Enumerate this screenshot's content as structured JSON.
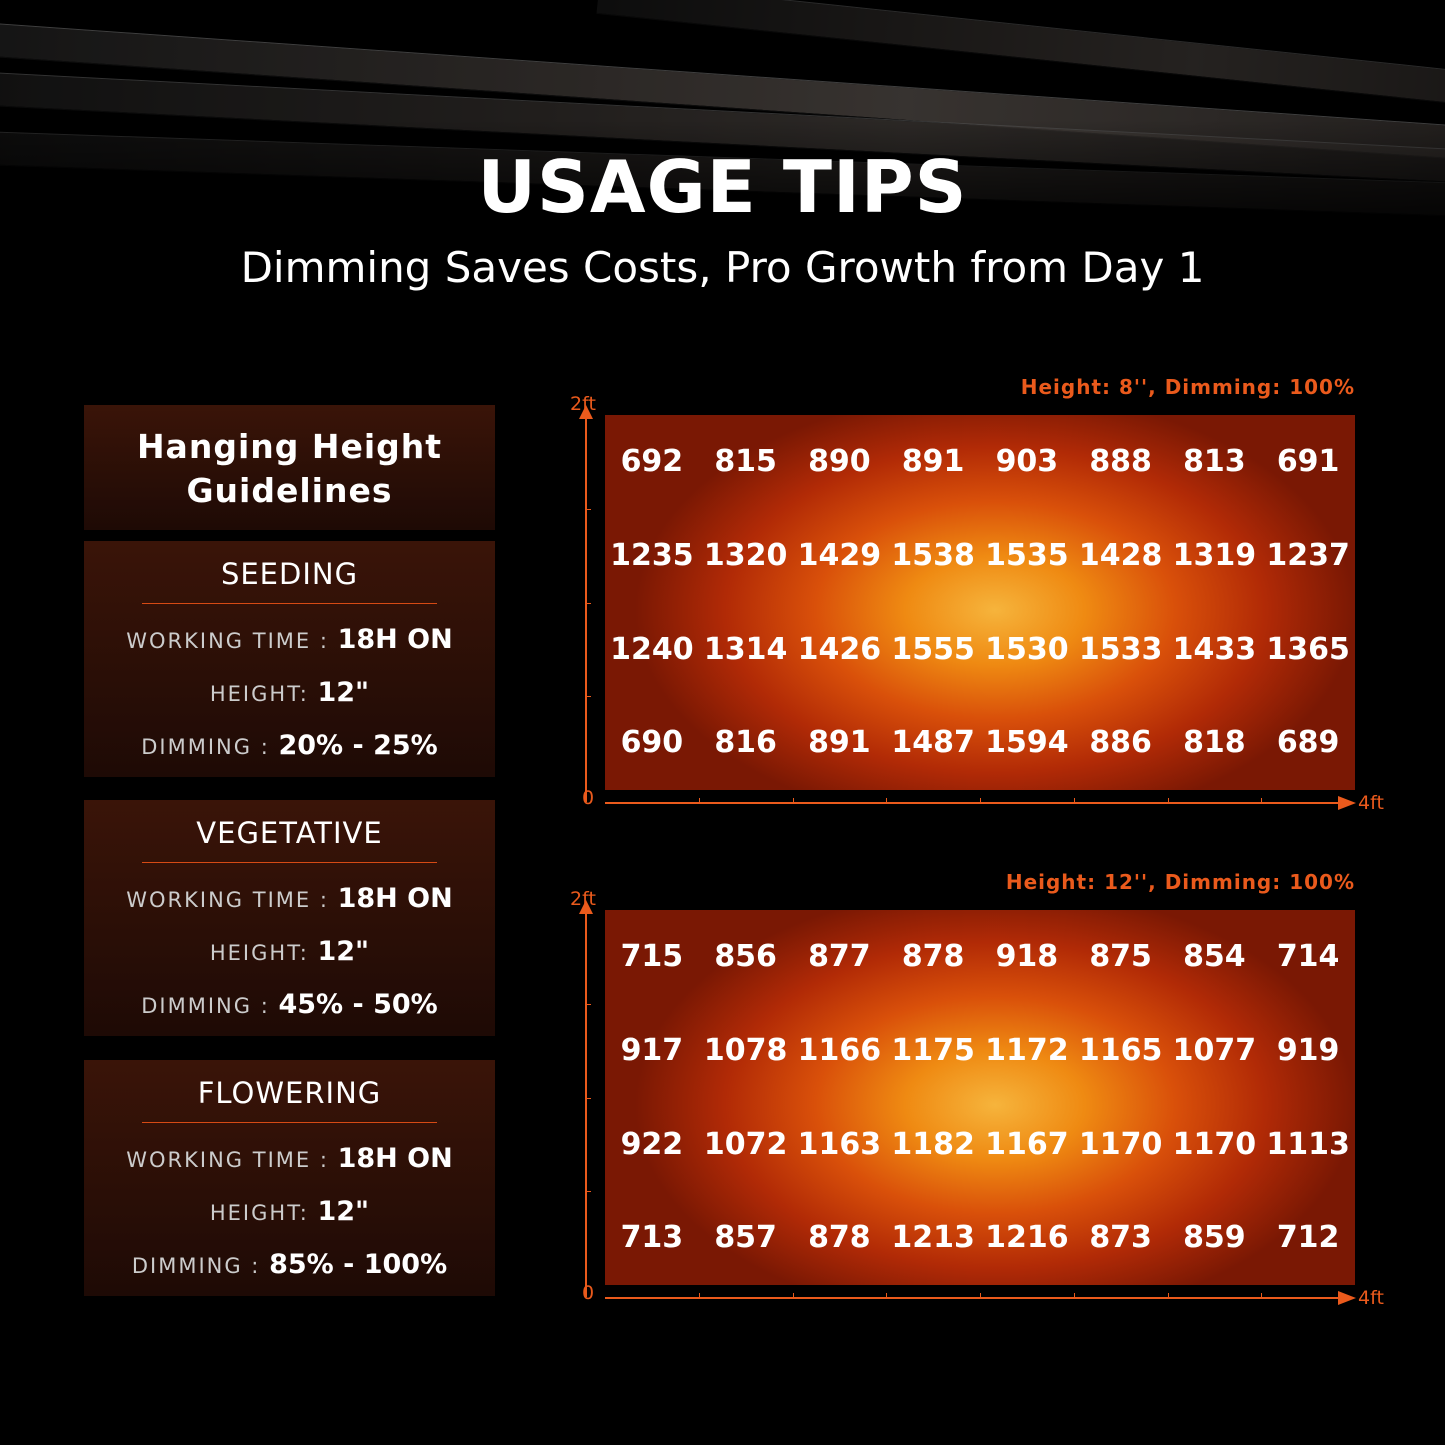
{
  "header": {
    "title": "USAGE TIPS",
    "subtitle": "Dimming Saves Costs, Pro Growth from Day 1"
  },
  "guidelines": {
    "title_line1": "Hanging Height",
    "title_line2": "Guidelines",
    "stages": [
      {
        "name": "SEEDING",
        "working_label": "WORKING TIME :",
        "working": "18H ON",
        "height_label": "HEIGHT:",
        "height": "12\"",
        "dimming_label": "DIMMING :",
        "dimming": "20% - 25%"
      },
      {
        "name": "VEGETATIVE",
        "working_label": "WORKING TIME :",
        "working": "18H ON",
        "height_label": "HEIGHT:",
        "height": "12\"",
        "dimming_label": "DIMMING :",
        "dimming": "45% - 50%"
      },
      {
        "name": "FLOWERING",
        "working_label": "WORKING TIME :",
        "working": "18H ON",
        "height_label": "HEIGHT:",
        "height": "12\"",
        "dimming_label": "DIMMING :",
        "dimming": "85% - 100%"
      }
    ]
  },
  "colors": {
    "accent": "#ea5a1c",
    "panel": "#2e1007"
  },
  "chart_data": [
    {
      "type": "heatmap",
      "title": "Height: 8'', Dimming: 100%",
      "y_axis": {
        "min_label": "0",
        "max_label": "2ft"
      },
      "x_axis": {
        "max_label": "4ft"
      },
      "values": [
        [
          692,
          815,
          890,
          891,
          903,
          888,
          813,
          691
        ],
        [
          1235,
          1320,
          1429,
          1538,
          1535,
          1428,
          1319,
          1237
        ],
        [
          1240,
          1314,
          1426,
          1555,
          1530,
          1533,
          1433,
          1365
        ],
        [
          690,
          816,
          891,
          1487,
          1594,
          886,
          818,
          689
        ]
      ]
    },
    {
      "type": "heatmap",
      "title": "Height: 12'', Dimming: 100%",
      "y_axis": {
        "min_label": "0",
        "max_label": "2ft"
      },
      "x_axis": {
        "max_label": "4ft"
      },
      "values": [
        [
          715,
          856,
          877,
          878,
          918,
          875,
          854,
          714
        ],
        [
          917,
          1078,
          1166,
          1175,
          1172,
          1165,
          1077,
          919
        ],
        [
          922,
          1072,
          1163,
          1182,
          1167,
          1170,
          1170,
          1113
        ],
        [
          713,
          857,
          878,
          1213,
          1216,
          873,
          859,
          712
        ]
      ]
    }
  ]
}
